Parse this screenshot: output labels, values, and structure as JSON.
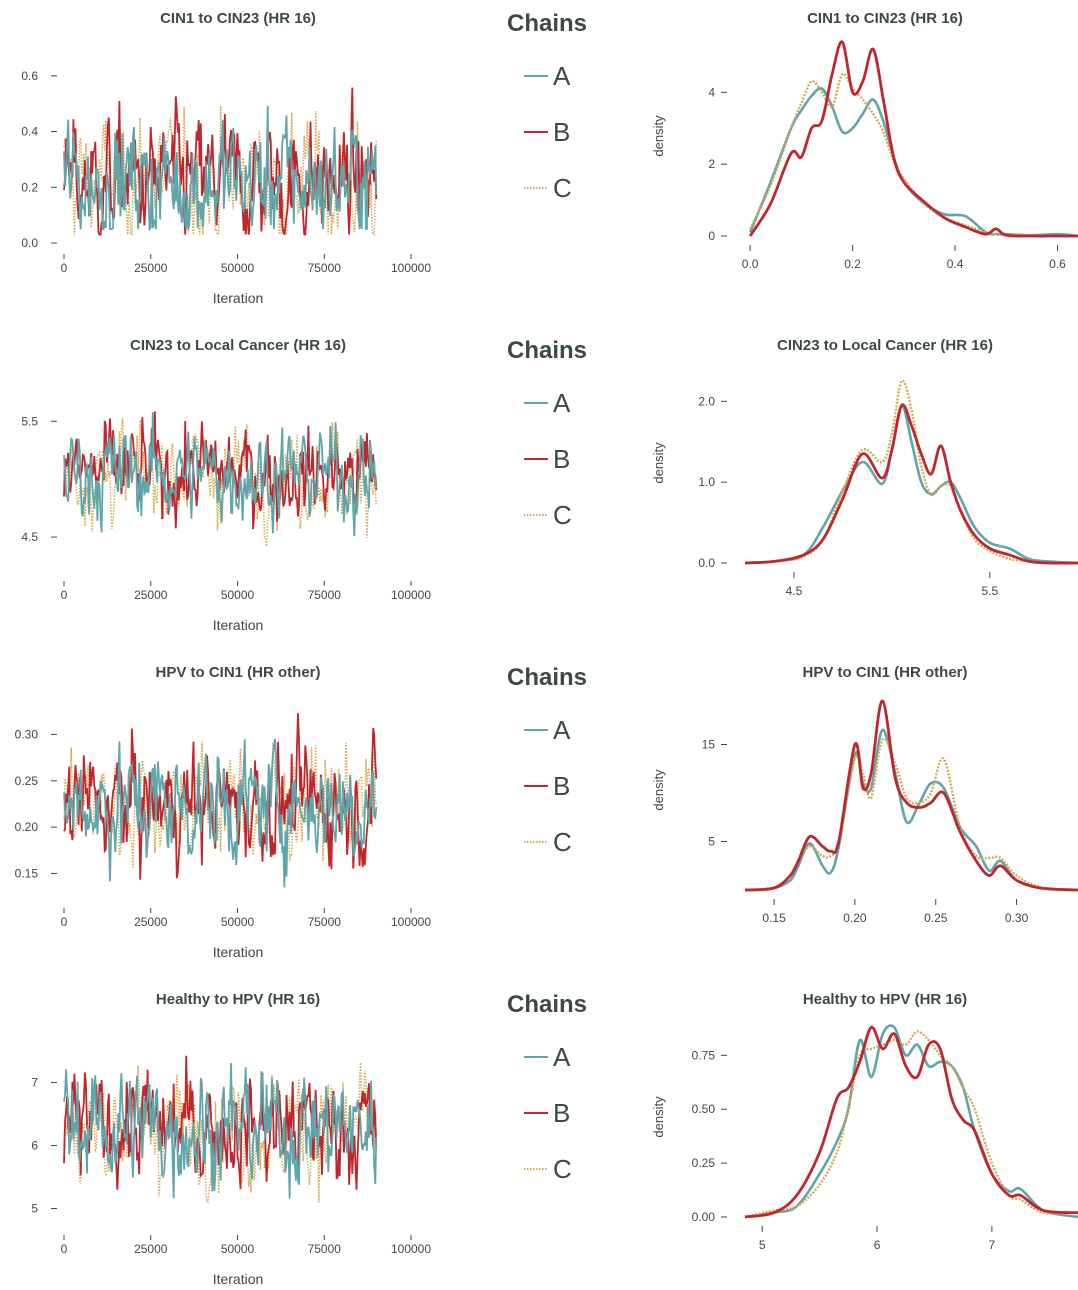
{
  "colors": {
    "A": "#5fa5aa",
    "B": "#c0272d",
    "C": "#d4a94f",
    "text": "#3d4a43",
    "axis": "#3d4a43"
  },
  "legend": {
    "title": "Chains",
    "entries": [
      "A",
      "B",
      "C"
    ],
    "styles": [
      "solid",
      "solid",
      "dotted"
    ]
  },
  "chart_data": [
    {
      "panel": "trace",
      "type": "line",
      "title": "CIN1 to CIN23 (HR 16)",
      "xlabel": "Iteration",
      "ylabel": "",
      "xlim": [
        0,
        100000
      ],
      "ylim": [
        0.0,
        0.7
      ],
      "xticks": [
        0,
        25000,
        50000,
        75000,
        100000
      ],
      "yticks": [
        0.0,
        0.2,
        0.4,
        0.6
      ],
      "ytick_labels": [
        "0.0",
        "0.2",
        "0.4",
        "0.6"
      ],
      "series": [
        {
          "name": "A",
          "mean": 0.22,
          "sd": 0.11,
          "min": 0.05,
          "max": 0.67
        },
        {
          "name": "B",
          "mean": 0.22,
          "sd": 0.11,
          "min": 0.03,
          "max": 0.7
        },
        {
          "name": "C",
          "mean": 0.22,
          "sd": 0.11,
          "min": 0.03,
          "max": 0.71
        }
      ],
      "iterations": 90000
    },
    {
      "panel": "density",
      "type": "line",
      "title": "CIN1 to CIN23 (HR 16)",
      "xlabel": "",
      "ylabel": "density",
      "xlim": [
        -0.01,
        0.64
      ],
      "ylim": [
        0,
        5.4
      ],
      "xticks": [
        0.0,
        0.2,
        0.4,
        0.6
      ],
      "xtick_labels": [
        "0.0",
        "0.2",
        "0.4",
        "0.6"
      ],
      "yticks": [
        0,
        2,
        4
      ],
      "ytick_labels": [
        "0",
        "2",
        "4"
      ],
      "x": [
        0.0,
        0.04,
        0.08,
        0.1,
        0.12,
        0.14,
        0.16,
        0.18,
        0.2,
        0.22,
        0.24,
        0.26,
        0.28,
        0.3,
        0.34,
        0.38,
        0.42,
        0.46,
        0.48,
        0.5,
        0.55,
        0.6,
        0.64
      ],
      "series": [
        {
          "name": "A",
          "values": [
            0.1,
            1.5,
            3.0,
            3.5,
            3.9,
            4.1,
            3.6,
            2.9,
            3.0,
            3.4,
            3.8,
            3.2,
            2.2,
            1.5,
            0.9,
            0.6,
            0.55,
            0.1,
            0.05,
            0.05,
            0.02,
            0.05,
            0.0
          ]
        },
        {
          "name": "B",
          "values": [
            0.0,
            0.9,
            2.3,
            2.2,
            3.0,
            3.2,
            4.5,
            5.4,
            4.0,
            4.3,
            5.2,
            3.8,
            2.2,
            1.5,
            0.95,
            0.5,
            0.25,
            0.05,
            0.2,
            0.02,
            0.0,
            0.0,
            0.0
          ]
        },
        {
          "name": "C",
          "values": [
            0.2,
            1.4,
            3.0,
            3.7,
            4.3,
            4.0,
            3.6,
            4.5,
            4.1,
            3.8,
            3.4,
            2.9,
            2.1,
            1.6,
            0.9,
            0.5,
            0.3,
            0.1,
            0.05,
            0.03,
            0.02,
            0.0,
            0.0
          ]
        }
      ]
    },
    {
      "panel": "trace",
      "type": "line",
      "title": "CIN23 to Local Cancer (HR 16)",
      "xlabel": "Iteration",
      "ylabel": "",
      "xlim": [
        0,
        100000
      ],
      "ylim": [
        4.25,
        5.9
      ],
      "xticks": [
        0,
        25000,
        50000,
        75000,
        100000
      ],
      "yticks": [
        4.5,
        5.5
      ],
      "ytick_labels": [
        "4.5",
        "5.5"
      ],
      "series": [
        {
          "name": "A",
          "mean": 5.05,
          "sd": 0.2,
          "min": 4.23,
          "max": 5.63
        },
        {
          "name": "B",
          "mean": 5.05,
          "sd": 0.2,
          "min": 4.55,
          "max": 5.67
        },
        {
          "name": "C",
          "mean": 5.05,
          "sd": 0.2,
          "min": 4.42,
          "max": 5.85
        }
      ],
      "iterations": 90000
    },
    {
      "panel": "density",
      "type": "line",
      "title": "CIN23 to Local Cancer (HR 16)",
      "xlabel": "",
      "ylabel": "density",
      "xlim": [
        4.25,
        5.95
      ],
      "ylim": [
        0,
        2.4
      ],
      "xticks": [
        4.5,
        5.5
      ],
      "xtick_labels": [
        "4.5",
        "5.5"
      ],
      "yticks": [
        0.0,
        1.0,
        2.0
      ],
      "ytick_labels": [
        "0.0",
        "1.0",
        "2.0"
      ],
      "x": [
        4.25,
        4.4,
        4.55,
        4.65,
        4.75,
        4.85,
        4.95,
        5.0,
        5.05,
        5.1,
        5.15,
        5.2,
        5.25,
        5.3,
        5.35,
        5.42,
        5.5,
        5.6,
        5.7,
        5.8,
        5.95
      ],
      "series": [
        {
          "name": "A",
          "values": [
            0.0,
            0.02,
            0.1,
            0.45,
            0.9,
            1.25,
            0.98,
            1.4,
            1.95,
            1.5,
            1.0,
            0.85,
            0.95,
            1.0,
            0.8,
            0.45,
            0.25,
            0.18,
            0.05,
            0.02,
            0.0
          ]
        },
        {
          "name": "B",
          "values": [
            0.0,
            0.02,
            0.1,
            0.3,
            0.8,
            1.35,
            1.05,
            1.4,
            1.95,
            1.7,
            1.35,
            1.1,
            1.45,
            1.0,
            0.65,
            0.35,
            0.18,
            0.1,
            0.02,
            0.0,
            0.0
          ]
        },
        {
          "name": "C",
          "values": [
            0.0,
            0.02,
            0.08,
            0.3,
            0.9,
            1.4,
            1.25,
            1.6,
            2.25,
            1.9,
            1.2,
            0.85,
            0.95,
            0.95,
            0.65,
            0.3,
            0.15,
            0.05,
            0.02,
            0.0,
            0.0
          ]
        }
      ]
    },
    {
      "panel": "trace",
      "type": "line",
      "title": "HPV to CIN1 (HR other)",
      "xlabel": "Iteration",
      "ylabel": "",
      "xlim": [
        0,
        100000
      ],
      "ylim": [
        0.13,
        0.335
      ],
      "xticks": [
        0,
        25000,
        50000,
        75000,
        100000
      ],
      "yticks": [
        0.15,
        0.2,
        0.25,
        0.3
      ],
      "ytick_labels": [
        "0.15",
        "0.20",
        "0.25",
        "0.30"
      ],
      "series": [
        {
          "name": "A",
          "mean": 0.225,
          "sd": 0.03,
          "min": 0.135,
          "max": 0.315
        },
        {
          "name": "B",
          "mean": 0.225,
          "sd": 0.03,
          "min": 0.14,
          "max": 0.335
        },
        {
          "name": "C",
          "mean": 0.225,
          "sd": 0.03,
          "min": 0.13,
          "max": 0.32
        }
      ],
      "iterations": 90000
    },
    {
      "panel": "density",
      "type": "line",
      "title": "HPV to CIN1 (HR other)",
      "xlabel": "",
      "ylabel": "density",
      "xlim": [
        0.132,
        0.338
      ],
      "ylim": [
        0,
        20
      ],
      "xticks": [
        0.15,
        0.2,
        0.25,
        0.3
      ],
      "xtick_labels": [
        "0.15",
        "0.20",
        "0.25",
        "0.30"
      ],
      "yticks": [
        5,
        15
      ],
      "ytick_labels": [
        "5",
        "15"
      ],
      "x": [
        0.132,
        0.15,
        0.16,
        0.165,
        0.172,
        0.18,
        0.185,
        0.19,
        0.2,
        0.205,
        0.21,
        0.217,
        0.225,
        0.232,
        0.24,
        0.247,
        0.255,
        0.265,
        0.275,
        0.283,
        0.29,
        0.3,
        0.315,
        0.338
      ],
      "series": [
        {
          "name": "A",
          "values": [
            0.0,
            0.2,
            1.0,
            2.5,
            4.8,
            2.5,
            1.8,
            4.5,
            14.0,
            11.0,
            10.5,
            16.5,
            12.0,
            7.0,
            9.0,
            11.0,
            10.5,
            6.5,
            4.5,
            2.0,
            3.0,
            1.0,
            0.2,
            0.0
          ]
        },
        {
          "name": "B",
          "values": [
            0.0,
            0.2,
            1.5,
            3.0,
            5.5,
            4.5,
            4.0,
            5.0,
            15.0,
            10.5,
            12.0,
            19.5,
            11.5,
            9.0,
            8.5,
            9.0,
            10.0,
            6.0,
            3.0,
            1.5,
            2.5,
            1.0,
            0.2,
            0.0
          ]
        },
        {
          "name": "C",
          "values": [
            0.0,
            0.3,
            1.5,
            3.0,
            4.5,
            3.5,
            3.5,
            5.0,
            13.5,
            12.0,
            9.5,
            15.5,
            13.0,
            9.5,
            9.0,
            10.0,
            13.5,
            6.5,
            3.5,
            3.3,
            3.3,
            1.5,
            0.3,
            0.0
          ]
        }
      ]
    },
    {
      "panel": "trace",
      "type": "line",
      "title": "Healthy to HPV (HR 16)",
      "xlabel": "Iteration",
      "ylabel": "",
      "xlim": [
        0,
        100000
      ],
      "ylim": [
        4.85,
        7.85
      ],
      "xticks": [
        0,
        25000,
        50000,
        75000,
        100000
      ],
      "yticks": [
        5,
        6,
        7
      ],
      "ytick_labels": [
        "5",
        "6",
        "7"
      ],
      "series": [
        {
          "name": "A",
          "mean": 6.3,
          "sd": 0.45,
          "min": 4.9,
          "max": 7.6
        },
        {
          "name": "B",
          "mean": 6.3,
          "sd": 0.45,
          "min": 5.3,
          "max": 7.6
        },
        {
          "name": "C",
          "mean": 6.3,
          "sd": 0.45,
          "min": 5.1,
          "max": 7.8
        }
      ],
      "iterations": 90000
    },
    {
      "panel": "density",
      "type": "line",
      "title": "Healthy to HPV (HR 16)",
      "xlabel": "",
      "ylabel": "density",
      "xlim": [
        4.85,
        7.75
      ],
      "ylim": [
        0,
        0.9
      ],
      "xticks": [
        5,
        6,
        7
      ],
      "xtick_labels": [
        "5",
        "6",
        "7"
      ],
      "yticks": [
        0.0,
        0.25,
        0.5,
        0.75
      ],
      "ytick_labels": [
        "0.00",
        "0.25",
        "0.50",
        "0.75"
      ],
      "x": [
        4.85,
        5.1,
        5.3,
        5.5,
        5.65,
        5.75,
        5.85,
        5.95,
        6.05,
        6.15,
        6.25,
        6.35,
        6.45,
        6.55,
        6.65,
        6.75,
        6.85,
        7.0,
        7.15,
        7.25,
        7.45,
        7.75
      ],
      "series": [
        {
          "name": "A",
          "values": [
            0.0,
            0.02,
            0.05,
            0.2,
            0.35,
            0.5,
            0.82,
            0.65,
            0.85,
            0.88,
            0.75,
            0.8,
            0.7,
            0.72,
            0.7,
            0.6,
            0.4,
            0.2,
            0.12,
            0.13,
            0.03,
            0.0
          ]
        },
        {
          "name": "B",
          "values": [
            0.0,
            0.02,
            0.1,
            0.3,
            0.55,
            0.6,
            0.72,
            0.88,
            0.78,
            0.85,
            0.7,
            0.65,
            0.8,
            0.78,
            0.55,
            0.45,
            0.4,
            0.2,
            0.1,
            0.1,
            0.03,
            0.02
          ]
        },
        {
          "name": "C",
          "values": [
            0.0,
            0.03,
            0.05,
            0.15,
            0.3,
            0.5,
            0.75,
            0.78,
            0.8,
            0.82,
            0.8,
            0.86,
            0.82,
            0.75,
            0.7,
            0.6,
            0.5,
            0.25,
            0.1,
            0.08,
            0.02,
            0.02
          ]
        }
      ]
    }
  ]
}
